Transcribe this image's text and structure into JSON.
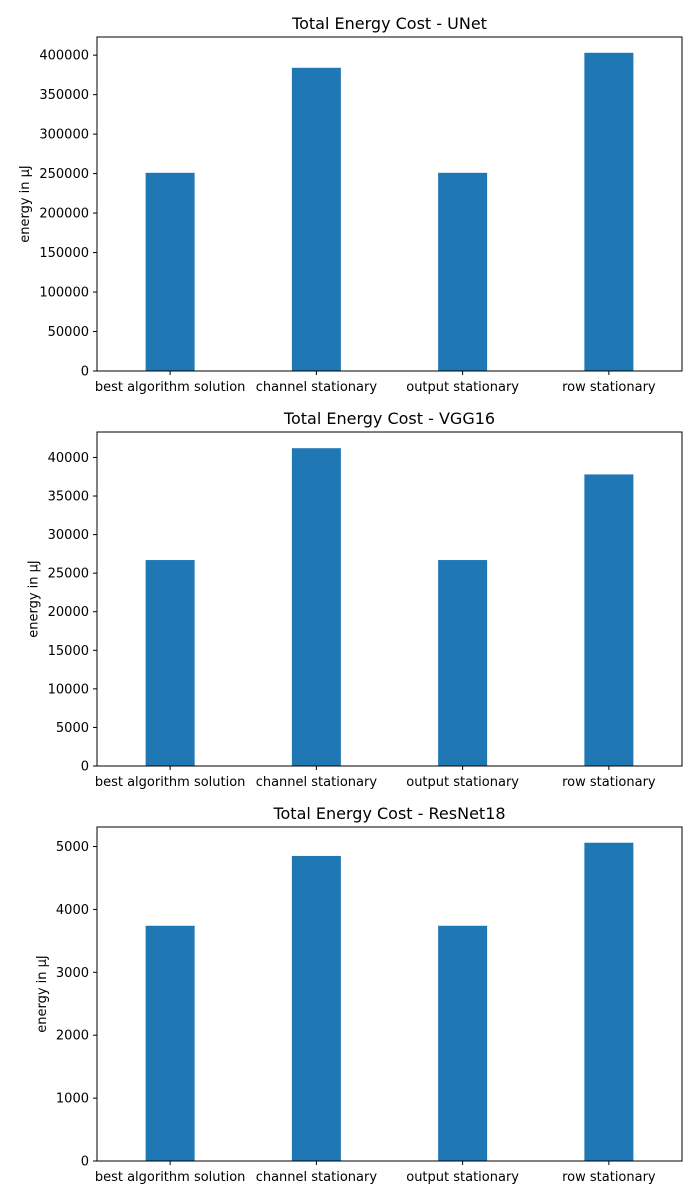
{
  "chart_data": [
    {
      "type": "bar",
      "title": "Total Energy Cost - UNet",
      "xlabel": "",
      "ylabel": "energy in µJ",
      "categories": [
        "best algorithm solution",
        "channel stationary",
        "output stationary",
        "row stationary"
      ],
      "values": [
        251000,
        384000,
        251000,
        403000
      ],
      "ylim": [
        0,
        423000
      ],
      "yticks": [
        0,
        50000,
        100000,
        150000,
        200000,
        250000,
        300000,
        350000,
        400000
      ],
      "ytick_labels": [
        "0",
        "50000",
        "100000",
        "150000",
        "200000",
        "250000",
        "300000",
        "350000",
        "400000"
      ],
      "grid": false,
      "color": "#1f77b4"
    },
    {
      "type": "bar",
      "title": "Total Energy Cost - VGG16",
      "xlabel": "",
      "ylabel": "energy in µJ",
      "categories": [
        "best algorithm solution",
        "channel stationary",
        "output stationary",
        "row stationary"
      ],
      "values": [
        26700,
        41200,
        26700,
        37800
      ],
      "ylim": [
        0,
        43300
      ],
      "yticks": [
        0,
        5000,
        10000,
        15000,
        20000,
        25000,
        30000,
        35000,
        40000
      ],
      "ytick_labels": [
        "0",
        "5000",
        "10000",
        "15000",
        "20000",
        "25000",
        "30000",
        "35000",
        "40000"
      ],
      "grid": false,
      "color": "#1f77b4"
    },
    {
      "type": "bar",
      "title": "Total Energy Cost - ResNet18",
      "xlabel": "",
      "ylabel": "energy in µJ",
      "categories": [
        "best algorithm solution",
        "channel stationary",
        "output stationary",
        "row stationary"
      ],
      "values": [
        3740,
        4850,
        3740,
        5060
      ],
      "ylim": [
        0,
        5310
      ],
      "yticks": [
        0,
        1000,
        2000,
        3000,
        4000,
        5000
      ],
      "ytick_labels": [
        "0",
        "1000",
        "2000",
        "3000",
        "4000",
        "5000"
      ],
      "grid": false,
      "color": "#1f77b4"
    }
  ]
}
